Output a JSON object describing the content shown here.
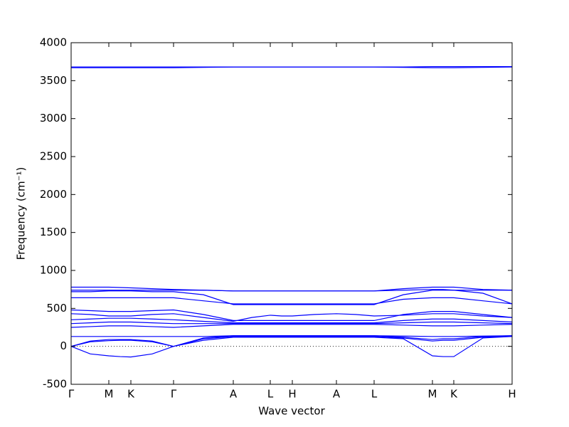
{
  "chart_data": {
    "type": "line",
    "xlabel": "Wave vector",
    "ylabel": "Frequency (cm⁻¹)",
    "xlim": [
      0,
      6.2
    ],
    "ylim": [
      -500,
      4000
    ],
    "yticks": [
      -500,
      0,
      500,
      1000,
      1500,
      2000,
      2500,
      3000,
      3500,
      4000
    ],
    "xticks": [
      {
        "value": 0,
        "label": "Γ"
      },
      {
        "value": 0.53,
        "label": "M"
      },
      {
        "value": 0.84,
        "label": "K"
      },
      {
        "value": 1.44,
        "label": "Γ"
      },
      {
        "value": 2.28,
        "label": "A"
      },
      {
        "value": 2.8,
        "label": "L"
      },
      {
        "value": 3.11,
        "label": "H"
      },
      {
        "value": 3.73,
        "label": "A"
      },
      {
        "value": 4.26,
        "label": "L"
      },
      {
        "value": 5.08,
        "label": "M"
      },
      {
        "value": 5.38,
        "label": "K"
      },
      {
        "value": 6.2,
        "label": "H"
      }
    ],
    "hlines": [
      0
    ],
    "x": [
      0,
      0.27,
      0.53,
      0.69,
      0.84,
      1.14,
      1.44,
      1.86,
      2.28,
      2.54,
      2.8,
      2.96,
      3.11,
      3.42,
      3.73,
      4.0,
      4.26,
      4.67,
      5.08,
      5.23,
      5.38,
      5.79,
      6.2
    ],
    "series": [
      {
        "color": "#0000ff",
        "values": [
          0,
          -100,
          -125,
          -135,
          -140,
          -100,
          0,
          80,
          120,
          120,
          120,
          120,
          120,
          120,
          120,
          120,
          120,
          100,
          -125,
          -135,
          -135,
          110,
          130
        ]
      },
      {
        "color": "#0000ff",
        "values": [
          0,
          60,
          75,
          80,
          80,
          60,
          0,
          100,
          130,
          130,
          130,
          130,
          130,
          130,
          130,
          130,
          130,
          110,
          70,
          80,
          80,
          120,
          135
        ]
      },
      {
        "color": "#0000ff",
        "values": [
          0,
          70,
          90,
          90,
          90,
          70,
          0,
          110,
          140,
          140,
          140,
          140,
          140,
          140,
          140,
          140,
          140,
          120,
          90,
          100,
          100,
          130,
          140
        ]
      },
      {
        "color": "#0000ff",
        "values": [
          130,
          130,
          130,
          130,
          130,
          130,
          130,
          130,
          140,
          140,
          140,
          140,
          140,
          140,
          140,
          140,
          140,
          135,
          130,
          130,
          130,
          135,
          140
        ]
      },
      {
        "color": "#0000ff",
        "values": [
          250,
          260,
          270,
          270,
          270,
          260,
          250,
          270,
          290,
          290,
          290,
          290,
          290,
          290,
          290,
          290,
          290,
          280,
          270,
          270,
          270,
          280,
          290
        ]
      },
      {
        "color": "#0000ff",
        "values": [
          300,
          310,
          320,
          320,
          320,
          310,
          300,
          300,
          300,
          300,
          300,
          300,
          300,
          300,
          300,
          300,
          300,
          310,
          320,
          320,
          320,
          310,
          300
        ]
      },
      {
        "color": "#0000ff",
        "values": [
          350,
          360,
          370,
          370,
          370,
          360,
          350,
          330,
          310,
          310,
          310,
          310,
          310,
          310,
          310,
          310,
          310,
          340,
          360,
          360,
          360,
          340,
          320
        ]
      },
      {
        "color": "#0000ff",
        "values": [
          430,
          420,
          400,
          400,
          400,
          420,
          430,
          380,
          330,
          380,
          410,
          400,
          400,
          420,
          430,
          420,
          400,
          410,
          430,
          430,
          430,
          400,
          380
        ]
      },
      {
        "color": "#0000ff",
        "values": [
          480,
          470,
          460,
          460,
          460,
          470,
          480,
          420,
          340,
          340,
          340,
          340,
          340,
          340,
          340,
          340,
          340,
          420,
          460,
          460,
          460,
          420,
          380
        ]
      },
      {
        "color": "#0000ff",
        "values": [
          640,
          640,
          640,
          640,
          640,
          640,
          640,
          600,
          560,
          560,
          560,
          560,
          560,
          560,
          560,
          560,
          560,
          620,
          640,
          640,
          640,
          600,
          560
        ]
      },
      {
        "color": "#0000ff",
        "values": [
          720,
          720,
          730,
          730,
          730,
          720,
          720,
          680,
          550,
          550,
          550,
          550,
          550,
          550,
          550,
          550,
          550,
          680,
          740,
          740,
          740,
          700,
          560
        ]
      },
      {
        "color": "#0000ff",
        "values": [
          740,
          740,
          740,
          740,
          740,
          740,
          740,
          740,
          730,
          730,
          730,
          730,
          730,
          730,
          730,
          730,
          730,
          740,
          750,
          750,
          740,
          740,
          740
        ]
      },
      {
        "color": "#0000ff",
        "values": [
          780,
          780,
          780,
          775,
          770,
          760,
          750,
          740,
          730,
          730,
          730,
          730,
          730,
          730,
          730,
          730,
          730,
          760,
          780,
          780,
          780,
          750,
          740
        ]
      },
      {
        "color": "#0000ff",
        "values": [
          3670,
          3670,
          3670,
          3670,
          3670,
          3670,
          3670,
          3675,
          3680,
          3680,
          3680,
          3680,
          3680,
          3680,
          3680,
          3680,
          3680,
          3675,
          3670,
          3670,
          3670,
          3675,
          3680
        ]
      },
      {
        "color": "#0000ff",
        "values": [
          3680,
          3680,
          3680,
          3680,
          3680,
          3680,
          3680,
          3680,
          3680,
          3680,
          3680,
          3680,
          3680,
          3680,
          3680,
          3680,
          3680,
          3680,
          3685,
          3685,
          3685,
          3685,
          3685
        ]
      }
    ]
  }
}
